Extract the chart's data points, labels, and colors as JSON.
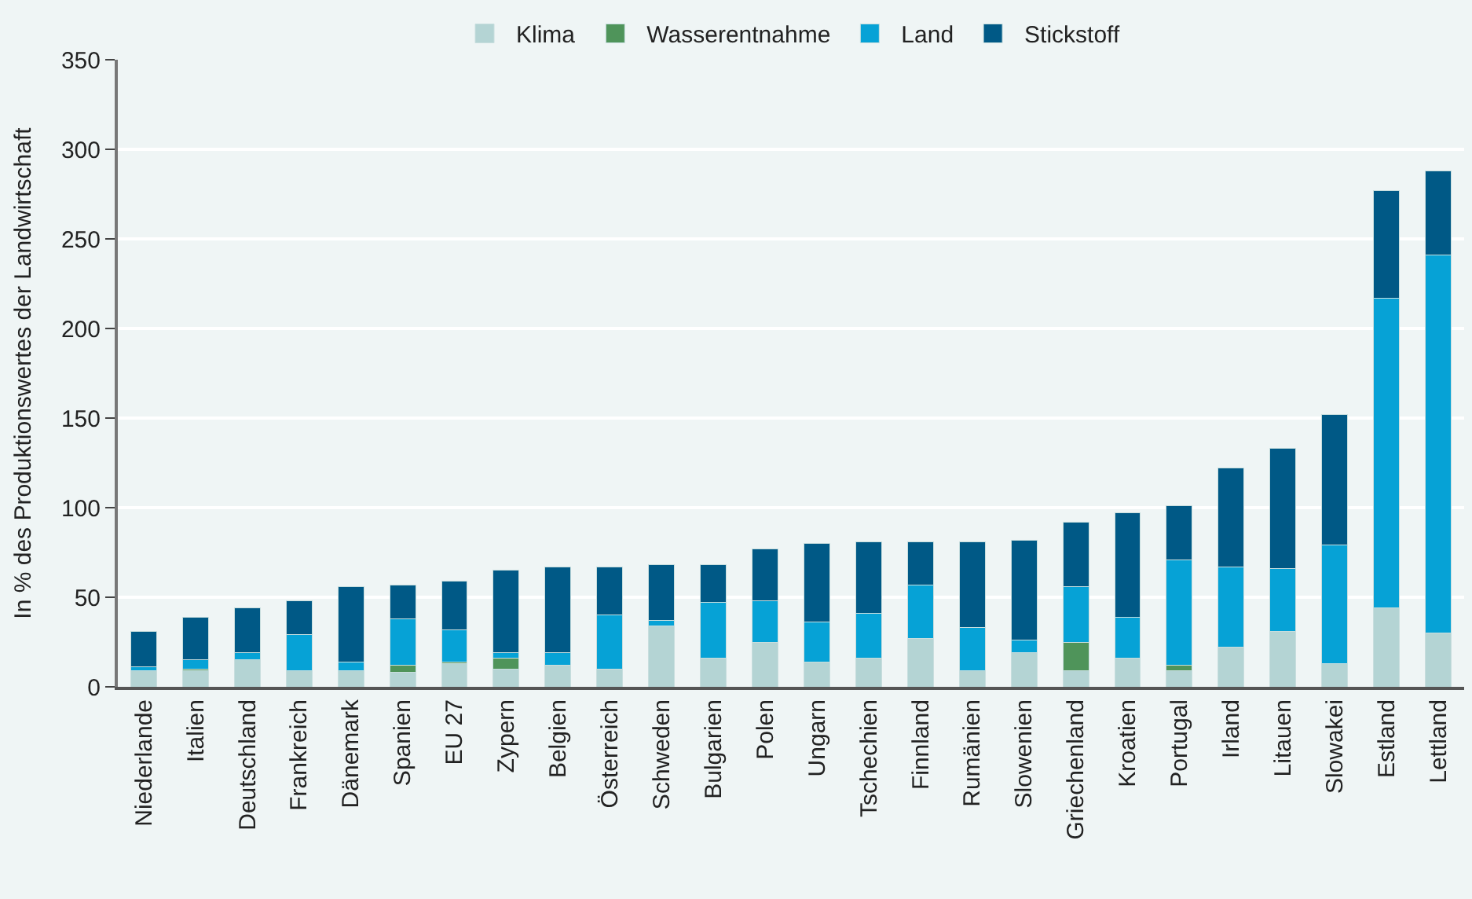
{
  "chart_data": {
    "type": "bar",
    "stacked": true,
    "ylabel": "In % des Produktionswertes der Landwirtschaft",
    "categories": [
      "Niederlande",
      "Italien",
      "Deutschland",
      "Frankreich",
      "Dänemark",
      "Spanien",
      "EU 27",
      "Zypern",
      "Belgien",
      "Österreich",
      "Schweden",
      "Bulgarien",
      "Polen",
      "Ungarn",
      "Tschechien",
      "Finnland",
      "Rumänien",
      "Slowenien",
      "Griechenland",
      "Kroatien",
      "Portugal",
      "Irland",
      "Litauen",
      "Slowakei",
      "Estland",
      "Lettland"
    ],
    "series": [
      {
        "name": "Klima",
        "color": "#b4d4d4",
        "values": [
          9,
          9,
          15,
          9,
          9,
          8,
          13,
          10,
          12,
          10,
          34,
          16,
          25,
          14,
          16,
          27,
          9,
          19,
          9,
          16,
          9,
          22,
          31,
          13,
          44,
          30
        ]
      },
      {
        "name": "Wasserentnahme",
        "color": "#4f945a",
        "values": [
          0,
          1,
          0,
          0,
          0,
          4,
          1,
          6,
          0,
          0,
          0,
          0,
          0,
          0,
          0,
          0,
          0,
          0,
          16,
          0,
          3,
          0,
          0,
          0,
          0,
          0
        ]
      },
      {
        "name": "Land",
        "color": "#06a2d6",
        "values": [
          2,
          5,
          4,
          20,
          5,
          26,
          18,
          3,
          7,
          30,
          3,
          31,
          23,
          22,
          25,
          30,
          24,
          7,
          31,
          23,
          59,
          45,
          35,
          66,
          173,
          211
        ]
      },
      {
        "name": "Stickstoff",
        "color": "#005986",
        "values": [
          20,
          24,
          25,
          19,
          42,
          19,
          27,
          46,
          48,
          27,
          31,
          21,
          29,
          44,
          40,
          24,
          48,
          56,
          36,
          58,
          30,
          55,
          67,
          73,
          60,
          47
        ]
      }
    ],
    "ylim": [
      0,
      350
    ],
    "yticks": [
      0,
      50,
      100,
      150,
      200,
      250,
      300,
      350
    ],
    "grid": "y",
    "legend": "top"
  }
}
